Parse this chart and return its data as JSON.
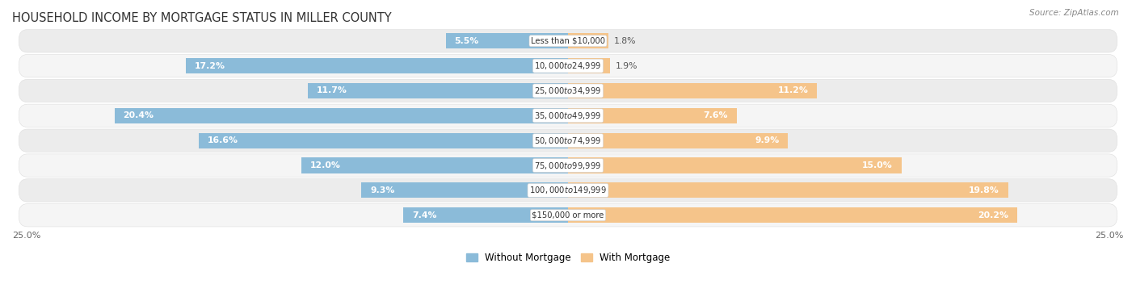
{
  "title": "HOUSEHOLD INCOME BY MORTGAGE STATUS IN MILLER COUNTY",
  "source": "Source: ZipAtlas.com",
  "categories": [
    "Less than $10,000",
    "$10,000 to $24,999",
    "$25,000 to $34,999",
    "$35,000 to $49,999",
    "$50,000 to $74,999",
    "$75,000 to $99,999",
    "$100,000 to $149,999",
    "$150,000 or more"
  ],
  "without_mortgage": [
    5.5,
    17.2,
    11.7,
    20.4,
    16.6,
    12.0,
    9.3,
    7.4
  ],
  "with_mortgage": [
    1.8,
    1.9,
    11.2,
    7.6,
    9.9,
    15.0,
    19.8,
    20.2
  ],
  "color_without": "#8BBBD9",
  "color_with": "#F5C48A",
  "xlim": 25.0,
  "legend_labels": [
    "Without Mortgage",
    "With Mortgage"
  ],
  "title_fontsize": 10.5,
  "bar_height": 0.62,
  "row_colors": [
    "#ECECEC",
    "#F5F5F5"
  ],
  "label_inside_threshold": 4.0
}
